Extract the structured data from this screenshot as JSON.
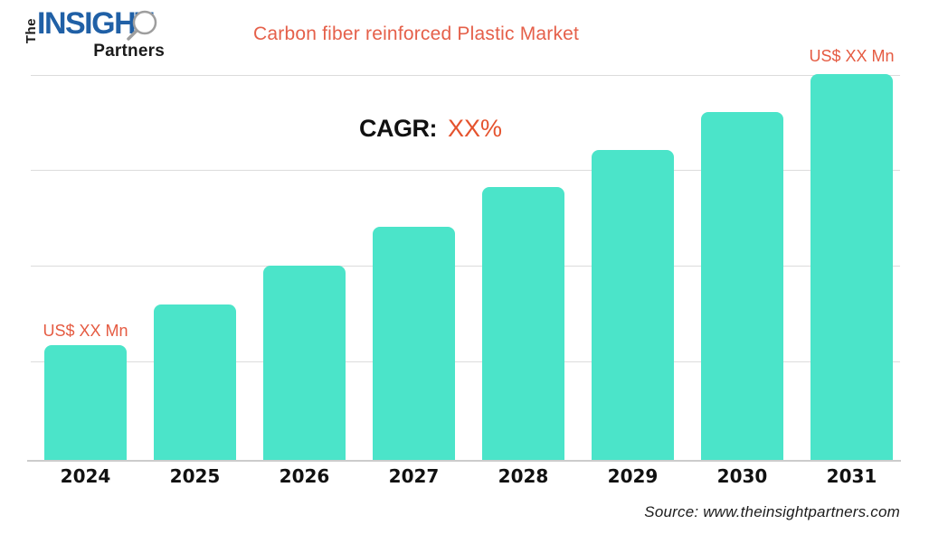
{
  "logo": {
    "the": "The",
    "insight": "INSIGHT",
    "partners": "Partners"
  },
  "title": "Carbon fiber reinforced Plastic Market",
  "cagr": {
    "label": "CAGR:",
    "value": "XX%"
  },
  "source": "Source: www.theinsightpartners.com",
  "colors": {
    "bar": "#4BE4C9",
    "accent": "#E5604A",
    "cagr-value": "#E5532E",
    "value-label": "#E55B42",
    "gridline": "#DCDCDC",
    "axis-line": "#CCCCCC",
    "text-dark": "#111111",
    "logo-blue": "#2060A6",
    "logo-dark": "#1A1A1A"
  },
  "chart_data": {
    "type": "bar",
    "title": "Carbon fiber reinforced Plastic Market",
    "categories": [
      "2024",
      "2025",
      "2026",
      "2027",
      "2028",
      "2029",
      "2030",
      "2031"
    ],
    "values": [
      29.7,
      40.3,
      50.3,
      60.4,
      70.7,
      80.3,
      90.2,
      100
    ],
    "values_note": "relative bar heights as % of the 2031 bar; actual market values are masked as XX in the image",
    "value_labels": {
      "first": "US$ XX Mn",
      "last": "US$ XX Mn"
    },
    "annotation": "CAGR: XX%",
    "xlabel": "",
    "ylabel": "",
    "y_axis_visible": false,
    "gridline_count": 4,
    "grid": "horizontal only",
    "legend": "none",
    "bar_corner_radius": "rounded top corners"
  }
}
